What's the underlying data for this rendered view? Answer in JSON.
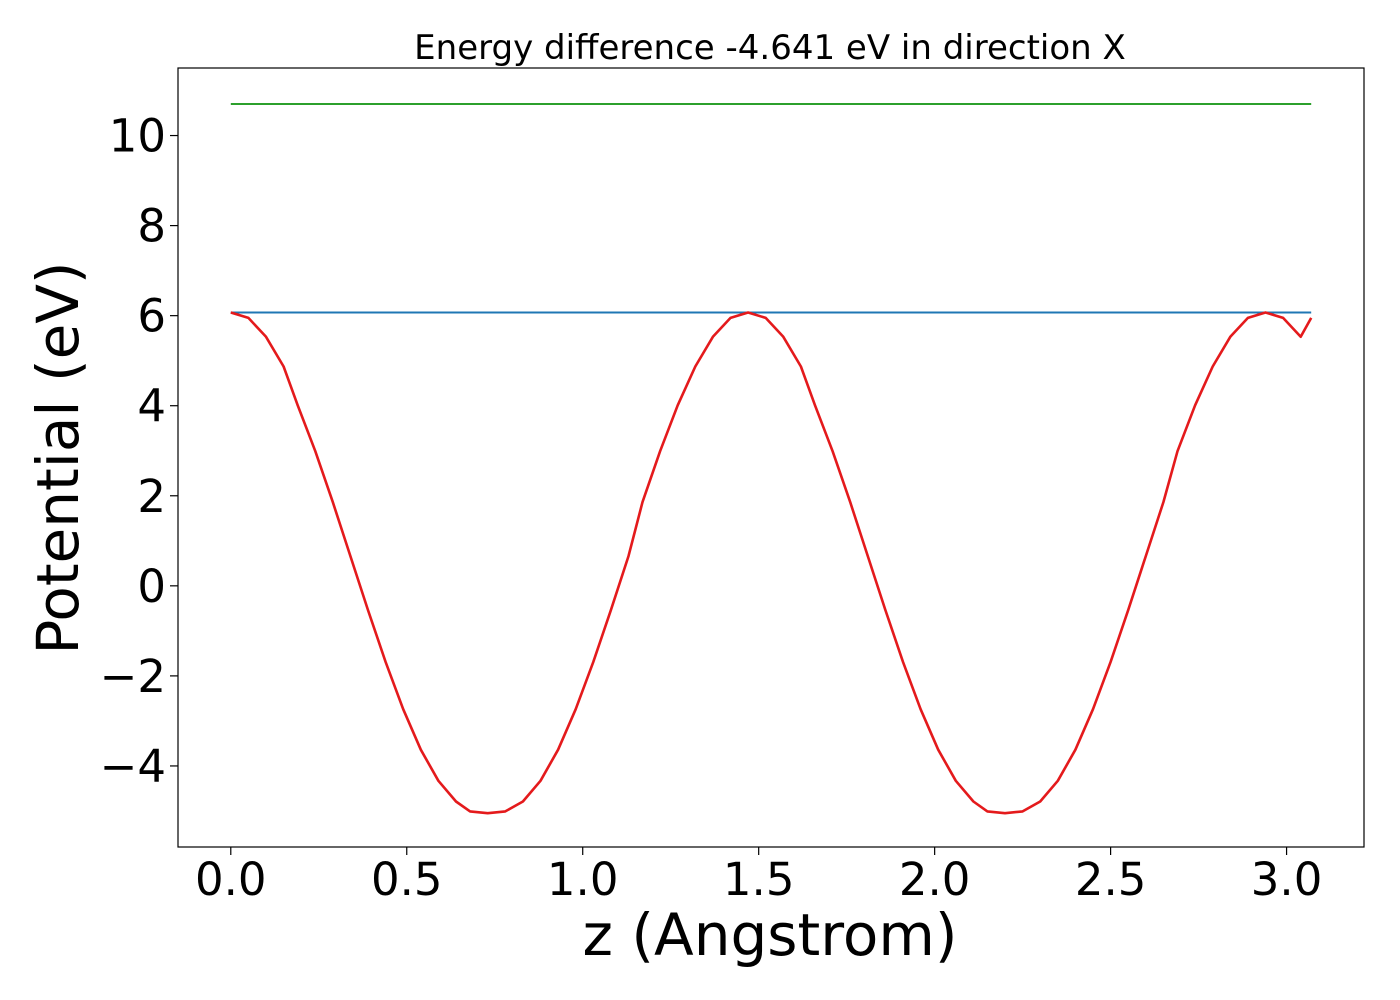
{
  "chart_data": {
    "type": "line",
    "title": "Energy difference -4.641 eV in direction X",
    "xlabel": "z (Angstrom)",
    "ylabel": "Potential (eV)",
    "xlim": [
      -0.15,
      3.22
    ],
    "ylim": [
      -5.8,
      11.5
    ],
    "xticks": [
      0.0,
      0.5,
      1.0,
      1.5,
      2.0,
      2.5,
      3.0
    ],
    "xtick_labels": [
      "0.0",
      "0.5",
      "1.0",
      "1.5",
      "2.0",
      "2.5",
      "3.0"
    ],
    "yticks": [
      -4,
      -2,
      0,
      2,
      4,
      6,
      8,
      10
    ],
    "ytick_labels": [
      "−4",
      "−2",
      "0",
      "2",
      "4",
      "6",
      "8",
      "10"
    ],
    "grid": false,
    "legend": "none",
    "series": [
      {
        "color": "#2ca02c",
        "x": [
          0.0,
          3.07
        ],
        "values": [
          10.7,
          10.7
        ]
      },
      {
        "color": "#1f77b4",
        "x": [
          0.0,
          3.07
        ],
        "values": [
          6.07,
          6.07
        ]
      },
      {
        "color": "#e41a1c",
        "x": [
          0.0,
          0.05,
          0.1,
          0.15,
          0.19,
          0.24,
          0.29,
          0.34,
          0.39,
          0.44,
          0.49,
          0.54,
          0.59,
          0.64,
          0.68,
          0.73,
          0.78,
          0.83,
          0.88,
          0.93,
          0.98,
          1.03,
          1.08,
          1.13,
          1.17,
          1.22,
          1.27,
          1.32,
          1.37,
          1.42,
          1.47,
          1.52,
          1.57,
          1.62,
          1.66,
          1.71,
          1.76,
          1.81,
          1.86,
          1.91,
          1.96,
          2.01,
          2.06,
          2.11,
          2.15,
          2.2,
          2.25,
          2.3,
          2.35,
          2.4,
          2.45,
          2.5,
          2.55,
          2.6,
          2.65,
          2.69,
          2.74,
          2.79,
          2.84,
          2.89,
          2.94,
          2.99,
          3.04,
          3.07
        ],
        "values": [
          6.07,
          5.95,
          5.53,
          4.87,
          4.01,
          2.99,
          1.86,
          0.66,
          -0.54,
          -1.69,
          -2.74,
          -3.64,
          -4.33,
          -4.79,
          -5.01,
          -5.05,
          -5.01,
          -4.79,
          -4.33,
          -3.64,
          -2.74,
          -1.69,
          -0.54,
          0.66,
          1.86,
          2.99,
          4.01,
          4.87,
          5.53,
          5.95,
          6.07,
          5.95,
          5.53,
          4.87,
          4.01,
          2.99,
          1.86,
          0.66,
          -0.54,
          -1.69,
          -2.74,
          -3.64,
          -4.33,
          -4.79,
          -5.01,
          -5.05,
          -5.01,
          -4.79,
          -4.33,
          -3.64,
          -2.74,
          -1.69,
          -0.54,
          0.66,
          1.86,
          2.99,
          4.01,
          4.87,
          5.53,
          5.95,
          6.07,
          5.95,
          5.53,
          5.95
        ]
      }
    ]
  }
}
